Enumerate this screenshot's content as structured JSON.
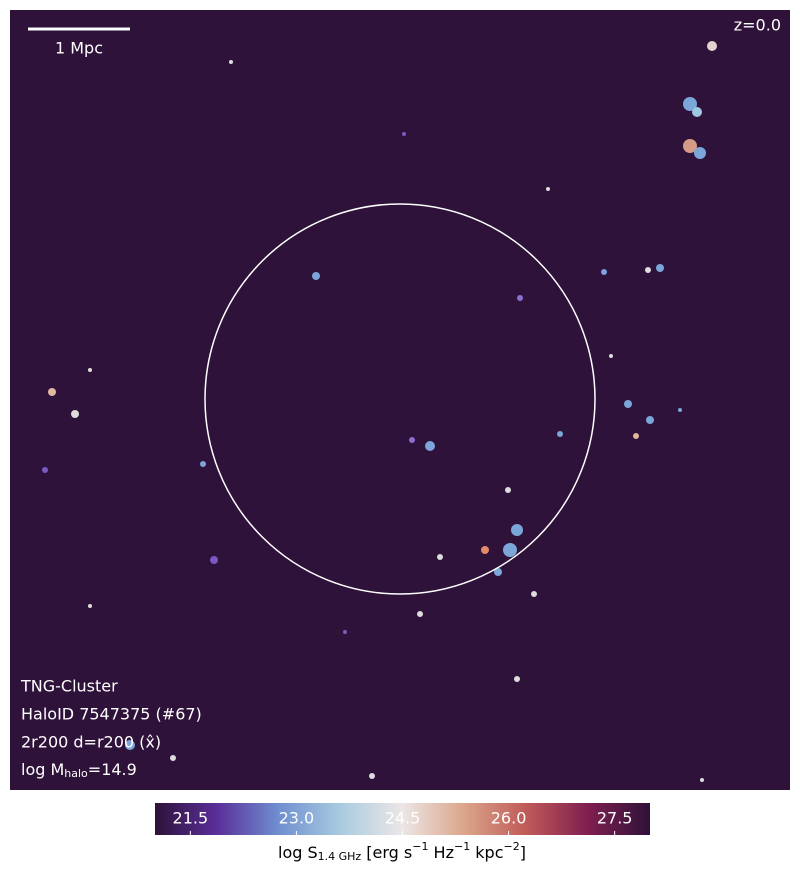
{
  "chart_data": {
    "type": "image",
    "scale_bar_label": "1 Mpc",
    "redshift_label": "z=0.0",
    "info_lines": [
      "TNG-Cluster",
      "HaloID 7547375 (#67)",
      "2r200 d=r200 (x̂)"
    ],
    "mass_label": [
      "log M",
      "halo",
      "=14.9"
    ],
    "colorbar_label": [
      "log S",
      "1.4 GHz",
      " [erg s",
      "−1",
      " Hz",
      "−1",
      " kpc",
      "−2",
      "]"
    ],
    "clim": [
      21,
      28
    ],
    "cticks": [
      21.5,
      {
        "value": 23,
        "label": "23.0"
      },
      24.5,
      {
        "value": 26,
        "label": "26.0"
      },
      27.5
    ],
    "colormap": [
      "#2e1239",
      "#5a2f9a",
      "#6f8fd0",
      "#a9cbe0",
      "#ece6e6",
      "#dba58a",
      "#c05a58",
      "#7f1f4f",
      "#2e1239"
    ]
  }
}
